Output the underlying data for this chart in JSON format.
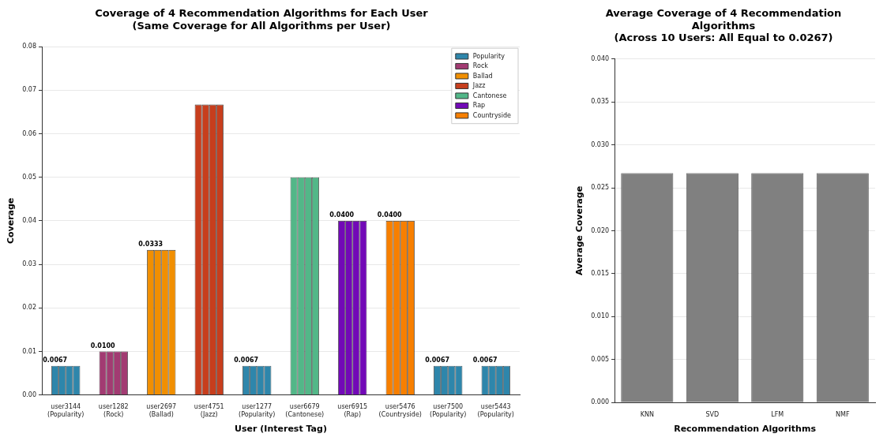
{
  "chart_data": [
    {
      "type": "bar",
      "title": "Coverage of 4 Recommendation Algorithms for Each User\n(Same Coverage for All Algorithms per User)",
      "xlabel": "User (Interest Tag)",
      "ylabel": "Coverage",
      "categories": [
        "user3144\n(Popularity)",
        "user1282\n(Rock)",
        "user2697\n(Ballad)",
        "user4751\n(Jazz)",
        "user1277\n(Popularity)",
        "user6679\n(Cantonese)",
        "user6915\n(Rap)",
        "user5476\n(Countryside)",
        "user7500\n(Popularity)",
        "user5443\n(Popularity)"
      ],
      "series": [
        {
          "name": "Popularity",
          "color": "#2e86ab",
          "values": [
            0.0067,
            null,
            null,
            null,
            0.0067,
            null,
            null,
            null,
            0.0067,
            0.0067
          ],
          "value_labels": [
            "0.0067",
            null,
            null,
            null,
            "0.0067",
            null,
            null,
            null,
            "0.0067",
            "0.0067"
          ]
        },
        {
          "color": "#2e86ab",
          "values": [
            0.0067,
            null,
            null,
            null,
            0.0067,
            null,
            null,
            null,
            0.0067,
            0.0067
          ]
        },
        {
          "color": "#2e86ab",
          "values": [
            0.0067,
            null,
            null,
            null,
            0.0067,
            null,
            null,
            null,
            0.0067,
            0.0067
          ]
        },
        {
          "color": "#2e86ab",
          "values": [
            0.0067,
            null,
            null,
            null,
            0.0067,
            null,
            null,
            null,
            0.0067,
            0.0067
          ]
        },
        {
          "name": "Rock",
          "color": "#a23b72",
          "values": [
            null,
            0.01,
            null,
            null,
            null,
            null,
            null,
            null,
            null,
            null
          ],
          "value_labels": [
            null,
            "0.0100",
            null,
            null,
            null,
            null,
            null,
            null,
            null,
            null
          ]
        },
        {
          "color": "#a23b72",
          "values": [
            null,
            0.01,
            null,
            null,
            null,
            null,
            null,
            null,
            null,
            null
          ]
        },
        {
          "color": "#a23b72",
          "values": [
            null,
            0.01,
            null,
            null,
            null,
            null,
            null,
            null,
            null,
            null
          ]
        },
        {
          "color": "#a23b72",
          "values": [
            null,
            0.01,
            null,
            null,
            null,
            null,
            null,
            null,
            null,
            null
          ]
        },
        {
          "name": "Ballad",
          "color": "#f18f01",
          "values": [
            null,
            null,
            0.0333,
            null,
            null,
            null,
            null,
            null,
            null,
            null
          ],
          "value_labels": [
            null,
            null,
            "0.0333",
            null,
            null,
            null,
            null,
            null,
            null,
            null
          ]
        },
        {
          "color": "#f18f01",
          "values": [
            null,
            null,
            0.0333,
            null,
            null,
            null,
            null,
            null,
            null,
            null
          ]
        },
        {
          "color": "#f18f01",
          "values": [
            null,
            null,
            0.0333,
            null,
            null,
            null,
            null,
            null,
            null,
            null
          ]
        },
        {
          "color": "#f18f01",
          "values": [
            null,
            null,
            0.0333,
            null,
            null,
            null,
            null,
            null,
            null,
            null
          ]
        },
        {
          "name": "Jazz",
          "color": "#c73e1d",
          "values": [
            null,
            null,
            null,
            0.0667,
            null,
            null,
            null,
            null,
            null,
            null
          ]
        },
        {
          "color": "#c73e1d",
          "values": [
            null,
            null,
            null,
            0.0667,
            null,
            null,
            null,
            null,
            null,
            null
          ]
        },
        {
          "color": "#c73e1d",
          "values": [
            null,
            null,
            null,
            0.0667,
            null,
            null,
            null,
            null,
            null,
            null
          ]
        },
        {
          "color": "#c73e1d",
          "values": [
            null,
            null,
            null,
            0.0667,
            null,
            null,
            null,
            null,
            null,
            null
          ]
        },
        {
          "name": "Cantonese",
          "color": "#52b788",
          "values": [
            null,
            null,
            null,
            null,
            null,
            0.05,
            null,
            null,
            null,
            null
          ]
        },
        {
          "color": "#52b788",
          "values": [
            null,
            null,
            null,
            null,
            null,
            0.05,
            null,
            null,
            null,
            null
          ]
        },
        {
          "color": "#52b788",
          "values": [
            null,
            null,
            null,
            null,
            null,
            0.05,
            null,
            null,
            null,
            null
          ]
        },
        {
          "color": "#52b788",
          "values": [
            null,
            null,
            null,
            null,
            null,
            0.05,
            null,
            null,
            null,
            null
          ]
        },
        {
          "name": "Rap",
          "color": "#7209b7",
          "values": [
            null,
            null,
            null,
            null,
            null,
            null,
            0.04,
            null,
            null,
            null
          ],
          "value_labels": [
            null,
            null,
            null,
            null,
            null,
            null,
            "0.0400",
            null,
            null,
            null
          ]
        },
        {
          "color": "#7209b7",
          "values": [
            null,
            null,
            null,
            null,
            null,
            null,
            0.04,
            null,
            null,
            null
          ]
        },
        {
          "color": "#7209b7",
          "values": [
            null,
            null,
            null,
            null,
            null,
            null,
            0.04,
            null,
            null,
            null
          ]
        },
        {
          "color": "#7209b7",
          "values": [
            null,
            null,
            null,
            null,
            null,
            null,
            0.04,
            null,
            null,
            null
          ]
        },
        {
          "name": "Countryside",
          "color": "#f77f00",
          "values": [
            null,
            null,
            null,
            null,
            null,
            null,
            null,
            0.04,
            null,
            null
          ],
          "value_labels": [
            null,
            null,
            null,
            null,
            null,
            null,
            null,
            "0.0400",
            null,
            null
          ]
        },
        {
          "color": "#f77f00",
          "values": [
            null,
            null,
            null,
            null,
            null,
            null,
            null,
            0.04,
            null,
            null
          ]
        },
        {
          "color": "#f77f00",
          "values": [
            null,
            null,
            null,
            null,
            null,
            null,
            null,
            0.04,
            null,
            null
          ]
        },
        {
          "color": "#f77f00",
          "values": [
            null,
            null,
            null,
            null,
            null,
            null,
            null,
            0.04,
            null,
            null
          ]
        }
      ],
      "ylim": [
        0,
        0.08
      ],
      "yticks": [
        {
          "value": 0,
          "label": "0.00"
        },
        0.01,
        0.02,
        0.03,
        0.04,
        0.05,
        0.06,
        0.07,
        0.08
      ],
      "grid": "y",
      "legend": "top right"
    },
    {
      "type": "bar",
      "title": "Average Coverage of 4 Recommendation Algorithms\n(Across 10 Users: All Equal to 0.0267)",
      "xlabel": "Recommendation Algorithms",
      "ylabel": "Average Coverage",
      "categories": [
        "KNN",
        "SVD",
        "LFM",
        "NMF"
      ],
      "series": [
        {
          "color": "#808080",
          "values": [
            0.0267,
            0.0267,
            0.0267,
            0.0267
          ]
        }
      ],
      "ylim": [
        0,
        0.04
      ],
      "yticks": [
        {
          "value": 0,
          "label": "0.000"
        },
        {
          "value": 0.005,
          "label": "0.005"
        },
        {
          "value": 0.01,
          "label": "0.010"
        },
        {
          "value": 0.015,
          "label": "0.015"
        },
        {
          "value": 0.02,
          "label": "0.020"
        },
        {
          "value": 0.025,
          "label": "0.025"
        },
        {
          "value": 0.03,
          "label": "0.030"
        },
        {
          "value": 0.035,
          "label": "0.035"
        },
        {
          "value": 0.04,
          "label": "0.040"
        }
      ],
      "grid": "y",
      "legend": false
    }
  ]
}
